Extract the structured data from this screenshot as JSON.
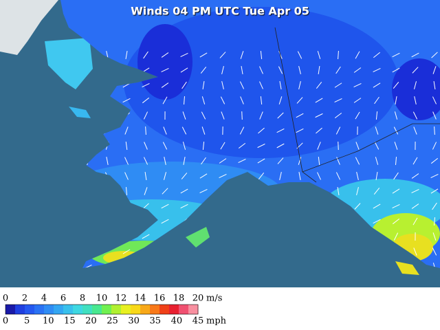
{
  "title": "Winds 04 PM UTC Tue Apr 05",
  "legend": {
    "colors": [
      "#1a1aa8",
      "#1f3fe0",
      "#2458f0",
      "#2a72f4",
      "#2f8cf4",
      "#33a6f2",
      "#38c0ec",
      "#3ed8e2",
      "#40e0c0",
      "#48e890",
      "#70f050",
      "#b0f030",
      "#e8f020",
      "#f8d818",
      "#f8a818",
      "#f87818",
      "#f04018",
      "#e82030",
      "#f05070",
      "#f890a0"
    ],
    "ms": {
      "ticks": [
        0,
        2,
        4,
        6,
        8,
        10,
        12,
        14,
        16,
        18,
        20
      ],
      "unit": "m/s"
    },
    "mph": {
      "ticks": [
        0,
        5,
        10,
        15,
        20,
        25,
        30,
        35,
        40,
        45
      ],
      "unit": "mph"
    }
  }
}
